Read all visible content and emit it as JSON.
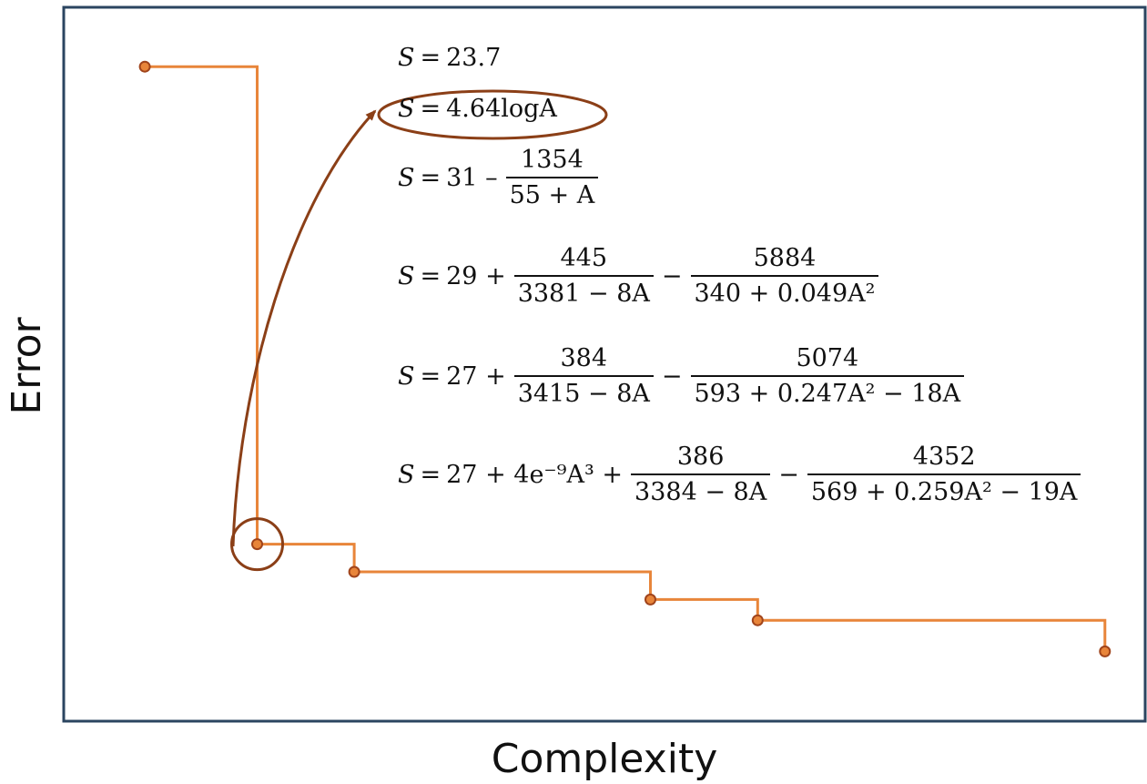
{
  "chart_data": {
    "type": "line",
    "step": true,
    "xlabel": "Complexity",
    "ylabel": "Error",
    "xlim": [
      0,
      100
    ],
    "ylim": [
      0,
      100
    ],
    "grid": false,
    "points": [
      {
        "x": 5,
        "y": 93
      },
      {
        "x": 16,
        "y": 24
      },
      {
        "x": 25.5,
        "y": 20
      },
      {
        "x": 54.5,
        "y": 16
      },
      {
        "x": 65,
        "y": 13
      },
      {
        "x": 99,
        "y": 8.5
      }
    ],
    "highlight_index": 1,
    "colors": {
      "line": "#e8853a",
      "marker_stroke": "#a0441b",
      "highlight": "#8b3f17",
      "frame": "#2b4560"
    }
  },
  "equations": [
    {
      "id": "eq1",
      "lhs": "S",
      "eq": "=",
      "parts": [
        {
          "t": "text",
          "v": "23.7"
        }
      ]
    },
    {
      "id": "eq2",
      "lhs": "S",
      "eq": "=",
      "parts": [
        {
          "t": "text",
          "v": "4.64logA"
        }
      ]
    },
    {
      "id": "eq3",
      "lhs": "S",
      "eq": "=",
      "parts": [
        {
          "t": "text",
          "v": "31 –"
        },
        {
          "t": "frac",
          "n": "1354",
          "d": "55 + A"
        }
      ]
    },
    {
      "id": "eq4",
      "lhs": "S",
      "eq": "=",
      "parts": [
        {
          "t": "text",
          "v": "29 +"
        },
        {
          "t": "frac",
          "n": "445",
          "d": "3381 − 8A"
        },
        {
          "t": "text",
          "v": "−"
        },
        {
          "t": "frac",
          "n": "5884",
          "d": "340 + 0.049A²"
        }
      ]
    },
    {
      "id": "eq5",
      "lhs": "S",
      "eq": "=",
      "parts": [
        {
          "t": "text",
          "v": "27 +"
        },
        {
          "t": "frac",
          "n": "384",
          "d": "3415 − 8A"
        },
        {
          "t": "text",
          "v": "−"
        },
        {
          "t": "frac",
          "n": "5074",
          "d": "593 + 0.247A² − 18A"
        }
      ]
    },
    {
      "id": "eq6",
      "lhs": "S",
      "eq": "=",
      "parts": [
        {
          "t": "text",
          "v": "27 + 4e⁻⁹A³ +"
        },
        {
          "t": "frac",
          "n": "386",
          "d": "3384 − 8A"
        },
        {
          "t": "text",
          "v": "−"
        },
        {
          "t": "frac",
          "n": "4352",
          "d": "569 + 0.259A² − 19A"
        }
      ]
    }
  ]
}
